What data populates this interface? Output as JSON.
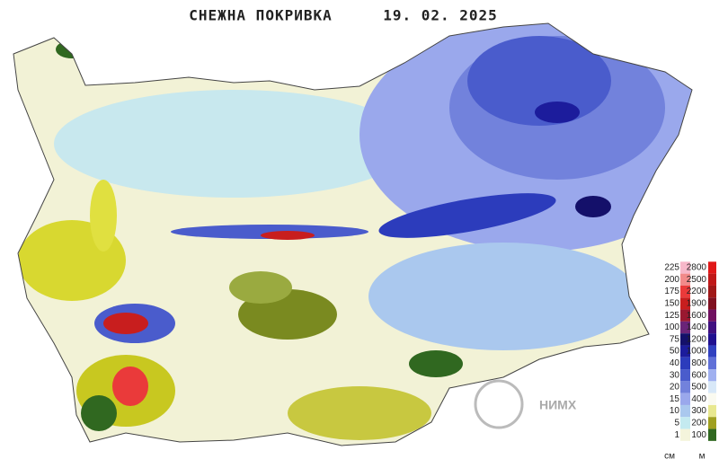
{
  "header": {
    "title": "СНЕЖНА ПОКРИВКА",
    "date": "19. 02. 2025"
  },
  "logo": {
    "text": "НИМХ"
  },
  "snow_legend": {
    "unit": "см",
    "items": [
      {
        "label": 225,
        "color": "#f7b7c9"
      },
      {
        "label": 200,
        "color": "#f28a8a"
      },
      {
        "label": 175,
        "color": "#ea3a3a"
      },
      {
        "label": 150,
        "color": "#c81e1e"
      },
      {
        "label": 125,
        "color": "#9a1830"
      },
      {
        "label": 100,
        "color": "#6a2478"
      },
      {
        "label": 75,
        "color": "#14106a"
      },
      {
        "label": 50,
        "color": "#1c1c9c"
      },
      {
        "label": 40,
        "color": "#2c3cbc"
      },
      {
        "label": 30,
        "color": "#4a5ccc"
      },
      {
        "label": 20,
        "color": "#7282dc"
      },
      {
        "label": 15,
        "color": "#9aa8ec"
      },
      {
        "label": 10,
        "color": "#aac8ee"
      },
      {
        "label": 5,
        "color": "#c4eaf0"
      },
      {
        "label": 1,
        "color": "#f4f4dc"
      }
    ]
  },
  "elevation_legend": {
    "unit": "м",
    "items": [
      {
        "label": 2800,
        "color": "#e01818"
      },
      {
        "label": 2500,
        "color": "#c01818"
      },
      {
        "label": 2200,
        "color": "#a01818"
      },
      {
        "label": 1900,
        "color": "#801020"
      },
      {
        "label": 1600,
        "color": "#701060"
      },
      {
        "label": 1400,
        "color": "#401080"
      },
      {
        "label": 1200,
        "color": "#201090"
      },
      {
        "label": 1000,
        "color": "#3040c0"
      },
      {
        "label": 800,
        "color": "#6070d8"
      },
      {
        "label": 600,
        "color": "#a0b0f0"
      },
      {
        "label": 500,
        "color": "#d8e8f8"
      },
      {
        "label": 400,
        "color": "#fafaf0"
      },
      {
        "label": 300,
        "color": "#e8e890"
      },
      {
        "label": 200,
        "color": "#a0a020"
      },
      {
        "label": 100,
        "color": "#306820"
      }
    ]
  }
}
